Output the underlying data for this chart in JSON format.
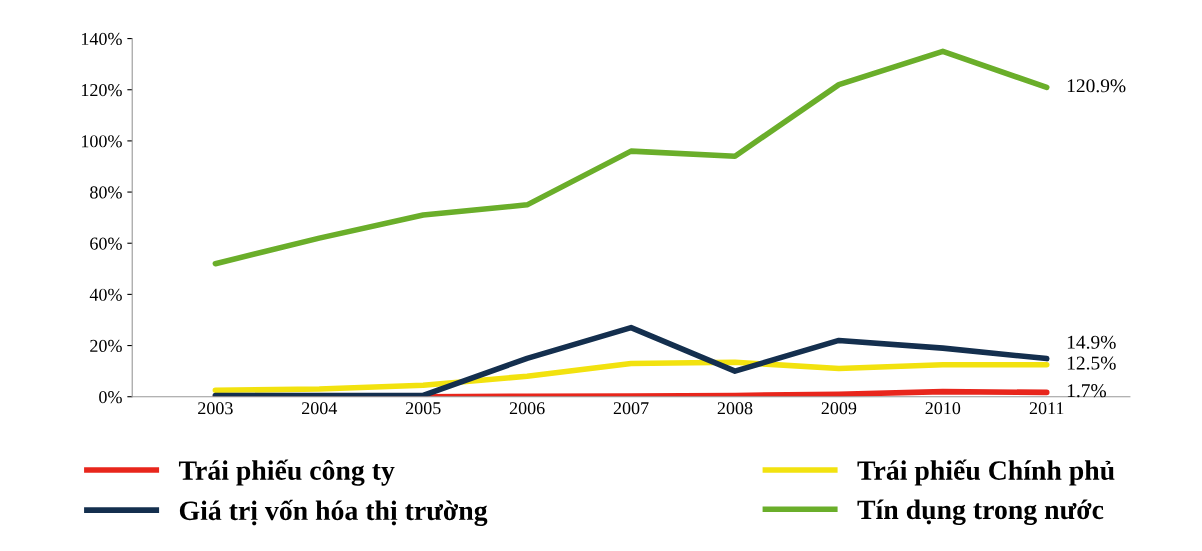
{
  "chart_data": {
    "type": "line",
    "categories": [
      "2003",
      "2004",
      "2005",
      "2006",
      "2007",
      "2008",
      "2009",
      "2010",
      "2011"
    ],
    "series": [
      {
        "name": "Trái phiếu công ty",
        "color": "#e8261c",
        "values": [
          0,
          0,
          0,
          0.2,
          0.3,
          0.5,
          1,
          2,
          1.7
        ]
      },
      {
        "name": "Trái phiếu Chính phủ",
        "color": "#f2e20f",
        "values": [
          2.5,
          3,
          4.5,
          8,
          13,
          13.5,
          11,
          12.5,
          12.5
        ]
      },
      {
        "name": "Giá trị vốn hóa thị trường",
        "color": "#142f4e",
        "values": [
          0.5,
          0.5,
          0.5,
          15,
          27,
          10,
          22,
          19,
          14.9
        ]
      },
      {
        "name": "Tín dụng trong nước",
        "color": "#6aae2a",
        "values": [
          52,
          62,
          71,
          75,
          96,
          94,
          122,
          135,
          120.9
        ]
      }
    ],
    "ylim": [
      0,
      140
    ],
    "yticks": [
      {
        "value": 0,
        "label": "0%"
      },
      {
        "value": 20,
        "label": "20%"
      },
      {
        "value": 40,
        "label": "40%"
      },
      {
        "value": 60,
        "label": "60%"
      },
      {
        "value": 80,
        "label": "80%"
      },
      {
        "value": 100,
        "label": "100%"
      },
      {
        "value": 120,
        "label": "120%"
      },
      {
        "value": 140,
        "label": "140%"
      }
    ],
    "annotations": [
      {
        "text": "120.9%",
        "x": "2011",
        "y": 120.9
      },
      {
        "text": "14.9%",
        "x": "2011",
        "y": 14.9
      },
      {
        "text": "12.5%",
        "x": "2011",
        "y": 12.5
      },
      {
        "text": "1.7%",
        "x": "2011",
        "y": 1.7
      }
    ],
    "legend": "bottom",
    "grid": false,
    "marker": "none",
    "line_style": "solid"
  }
}
